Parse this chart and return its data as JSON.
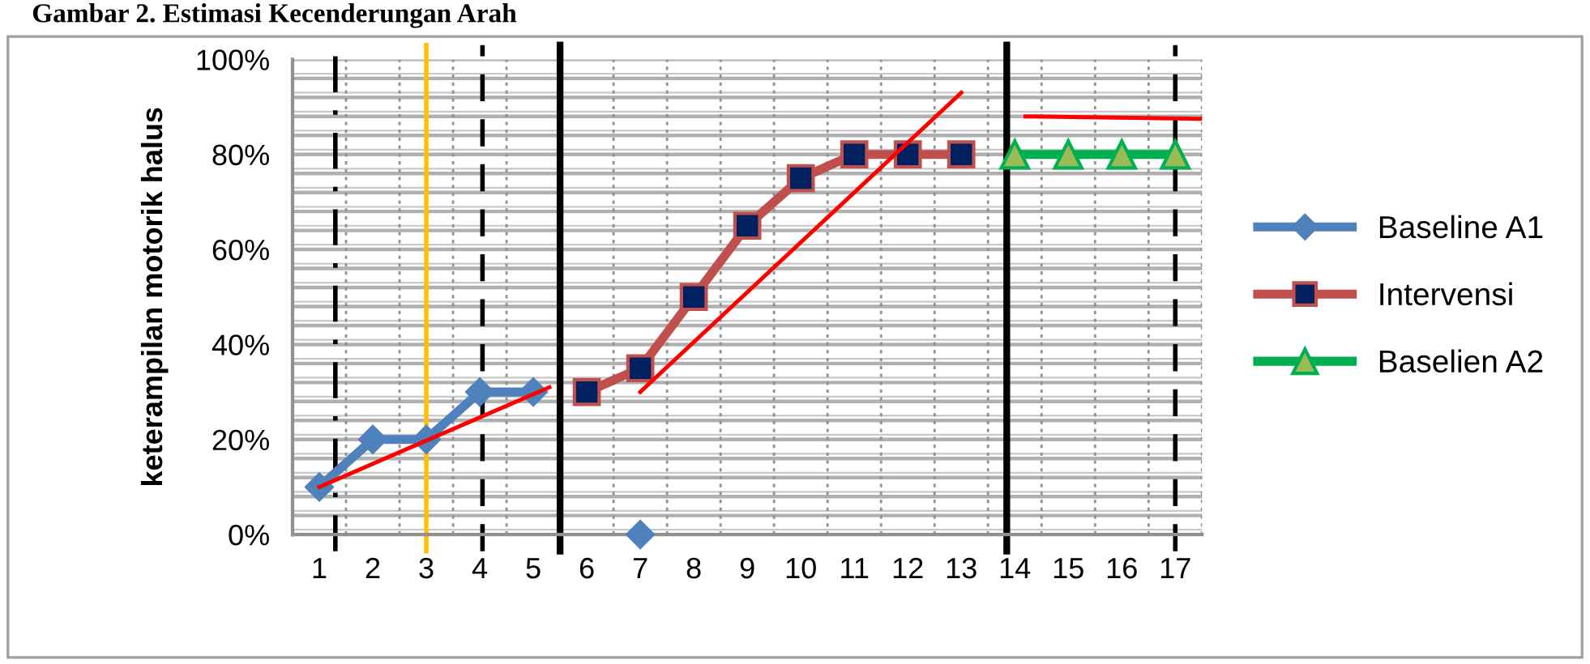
{
  "chart_data": {
    "type": "line",
    "title": "Gambar 2. Estimasi Kecenderungan Arah",
    "ylabel": "keterampilan motorik halus",
    "x": [
      1,
      2,
      3,
      4,
      5,
      6,
      7,
      8,
      9,
      10,
      11,
      12,
      13,
      14,
      15,
      16,
      17
    ],
    "series": [
      {
        "name": "Baseline A1",
        "color": "#4f81bd",
        "marker": "diamond",
        "colors": [
          "#4f81bd",
          "#4f81bd",
          "#4f81bd",
          "#4f81bd",
          "#4f81bd",
          null,
          "#4f81bd",
          null,
          null,
          null,
          null,
          null,
          null,
          null,
          null,
          null,
          null
        ],
        "values": [
          10,
          20,
          20,
          30,
          30,
          null,
          0,
          null,
          null,
          null,
          null,
          null,
          null,
          null,
          null,
          null,
          null
        ]
      },
      {
        "name": "Intervensi",
        "color": "#c0504d",
        "marker": "square",
        "colors": [
          null,
          null,
          null,
          null,
          null,
          "#002060",
          "#002060",
          "#002060",
          "#002060",
          "#002060",
          "#002060",
          "#002060",
          "#002060",
          null,
          null,
          null,
          null
        ],
        "values": [
          null,
          null,
          null,
          null,
          null,
          30,
          35,
          50,
          65,
          75,
          80,
          80,
          80,
          null,
          null,
          null,
          null
        ]
      },
      {
        "name": "Baselien A2",
        "color": "#00b050",
        "marker": "triangle",
        "colors": [
          null,
          null,
          null,
          null,
          null,
          null,
          null,
          null,
          null,
          null,
          null,
          null,
          null,
          "#9bbb59",
          "#9bbb59",
          "#9bbb59",
          "#9bbb59"
        ],
        "values": [
          null,
          null,
          null,
          null,
          null,
          null,
          null,
          null,
          null,
          null,
          null,
          null,
          null,
          80,
          80,
          80,
          80
        ]
      },
      {
        "type": "line",
        "color": "#ff0000",
        "marker": "none",
        "x": [
          1,
          5.3
        ],
        "values": [
          10,
          31
        ]
      },
      {
        "type": "line",
        "color": "#ff0000",
        "marker": "none",
        "x": [
          7,
          13
        ],
        "values": [
          30,
          93
        ]
      },
      {
        "type": "line",
        "color": "#ff0000",
        "marker": "none",
        "x": [
          14.2,
          17.5
        ],
        "values": [
          88,
          87.5
        ]
      }
    ],
    "xlim": [
      0.5,
      17.5
    ],
    "xticks": [
      1,
      2,
      3,
      4,
      5,
      6,
      7,
      8,
      9,
      10,
      11,
      12,
      13,
      14,
      15,
      16,
      17
    ],
    "ylim": [
      0,
      100
    ],
    "yticks": [
      {
        "value": 0,
        "label": "0%"
      },
      {
        "value": 20,
        "label": "20%"
      },
      {
        "value": 40,
        "label": "40%"
      },
      {
        "value": 60,
        "label": "60%"
      },
      {
        "value": 80,
        "label": "80%"
      },
      {
        "value": 100,
        "label": "100%"
      }
    ],
    "ref_lines": [
      {
        "axis": "x",
        "value": 1.3,
        "color": "#000000",
        "line_style": "dashdot"
      },
      {
        "axis": "x",
        "value": 3,
        "color": "#ffc000",
        "line_style": "solid"
      },
      {
        "axis": "x",
        "value": 4.05,
        "color": "#000000",
        "line_style": "dashed"
      },
      {
        "axis": "x",
        "value": 5.5,
        "color": "#000000",
        "line_style": "solid"
      },
      {
        "axis": "x",
        "value": 13.85,
        "color": "#000000",
        "line_style": "solid"
      },
      {
        "axis": "x",
        "value": 17,
        "color": "#000000",
        "line_style": "dashed"
      }
    ],
    "grid": true,
    "legend": "right",
    "line_style": "solid"
  }
}
